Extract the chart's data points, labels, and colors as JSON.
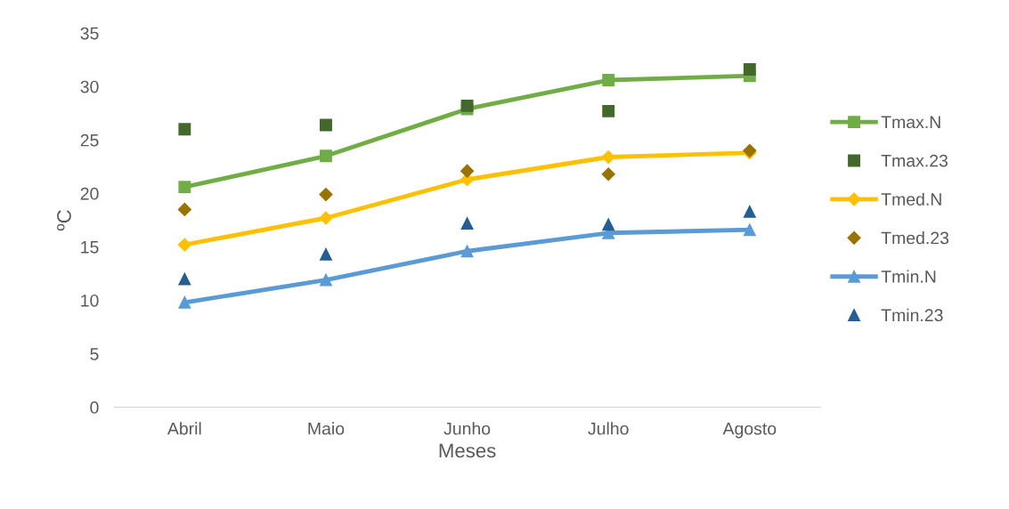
{
  "chart_data": {
    "type": "line",
    "xlabel": "Meses",
    "ylabel": "ºC",
    "categories": [
      "Abril",
      "Maio",
      "Junho",
      "Julho",
      "Agosto"
    ],
    "ylim": [
      0,
      35
    ],
    "yticks": [
      0,
      5,
      10,
      15,
      20,
      25,
      30,
      35
    ],
    "grid": false,
    "legend": "right",
    "series": [
      {
        "name": "Tmax.N",
        "marker": "square",
        "color": "#70ad47",
        "values": [
          20.6,
          23.5,
          27.9,
          30.6,
          31.0
        ]
      },
      {
        "name": "Tmax.23",
        "type": "scatter",
        "marker": "square",
        "color": "#43682b",
        "values": [
          26.0,
          26.4,
          28.2,
          27.7,
          31.6
        ]
      },
      {
        "name": "Tmed.N",
        "marker": "diamond",
        "color": "#ffc000",
        "values": [
          15.2,
          17.7,
          21.3,
          23.4,
          23.8
        ]
      },
      {
        "name": "Tmed.23",
        "type": "scatter",
        "marker": "diamond",
        "color": "#997300",
        "values": [
          18.5,
          19.9,
          22.1,
          21.8,
          24.0
        ]
      },
      {
        "name": "Tmin.N",
        "marker": "triangle",
        "color": "#5b9bd5",
        "values": [
          9.8,
          11.9,
          14.6,
          16.3,
          16.6
        ]
      },
      {
        "name": "Tmin.23",
        "type": "scatter",
        "marker": "triangle",
        "color": "#255e91",
        "values": [
          12.0,
          14.3,
          17.2,
          17.1,
          18.3
        ]
      }
    ]
  }
}
